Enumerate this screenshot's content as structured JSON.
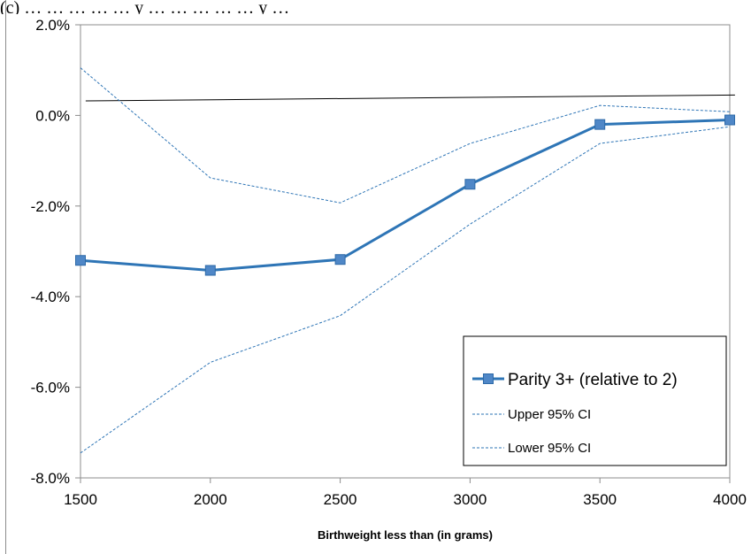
{
  "caption": "(c) … … … … … y … … … … … y …",
  "chart_data": {
    "type": "line",
    "title": "",
    "xlabel": "Birthweight less than (in grams)",
    "ylabel": "",
    "x": [
      1500,
      2000,
      2500,
      3000,
      3500,
      4000
    ],
    "x_tick_labels": [
      "1500",
      "2000",
      "2500",
      "3000",
      "3500",
      "4000"
    ],
    "xlim": [
      1500,
      4000
    ],
    "ylim": [
      -8.0,
      2.0
    ],
    "y_ticks": [
      2.0,
      0.0,
      -2.0,
      -4.0,
      -6.0,
      -8.0
    ],
    "y_tick_labels": [
      "2.0%",
      "0.0%",
      "-2.0%",
      "-4.0%",
      "-6.0%",
      "-8.0%"
    ],
    "grid": false,
    "legend_position": "bottom-right",
    "series": [
      {
        "name": "Parity 3+ (relative to 2)",
        "style": "solid-marker",
        "color": "#2e75b6",
        "values": [
          -3.2,
          -3.42,
          -3.18,
          -1.52,
          -0.2,
          -0.1
        ]
      },
      {
        "name": "Upper 95% CI",
        "style": "dashed",
        "color": "#2e75b6",
        "values": [
          1.05,
          -1.38,
          -1.93,
          -0.62,
          0.22,
          0.08
        ]
      },
      {
        "name": "Lower 95% CI",
        "style": "dashed",
        "color": "#2e75b6",
        "values": [
          -7.45,
          -5.45,
          -4.42,
          -2.4,
          -0.62,
          -0.25
        ]
      }
    ],
    "reference_line": {
      "x": [
        1520,
        4020
      ],
      "values": [
        0.32,
        0.45
      ],
      "color": "#000000"
    }
  }
}
